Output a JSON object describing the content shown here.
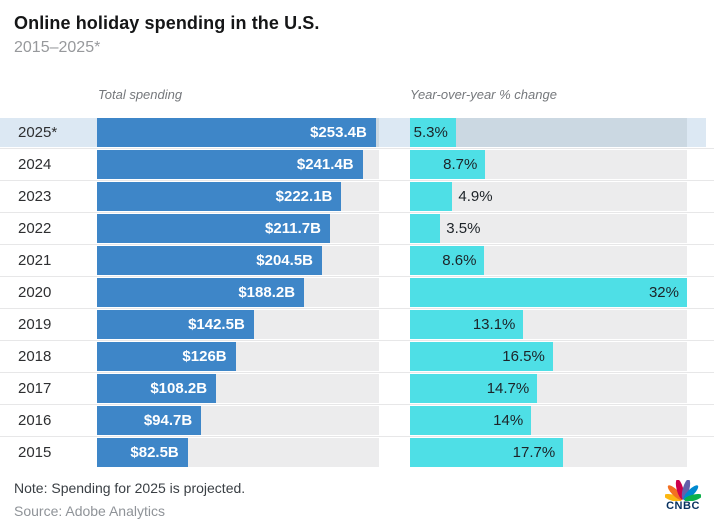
{
  "header": {
    "title": "Online holiday spending in the U.S.",
    "subtitle": "2015–2025*"
  },
  "columns": {
    "left": "Total spending",
    "right": "Year-over-year % change"
  },
  "chart_data": {
    "type": "bar",
    "orientation": "horizontal",
    "title": "Online holiday spending in the U.S.",
    "subtitle": "2015–2025*",
    "categories": [
      "2025*",
      "2024",
      "2023",
      "2022",
      "2021",
      "2020",
      "2019",
      "2018",
      "2017",
      "2016",
      "2015"
    ],
    "highlighted_category": "2025*",
    "series": [
      {
        "name": "Total spending",
        "unit": "$B",
        "values": [
          253.4,
          241.4,
          222.1,
          211.7,
          204.5,
          188.2,
          142.5,
          126,
          108.2,
          94.7,
          82.5
        ],
        "labels": [
          "$253.4B",
          "$241.4B",
          "$222.1B",
          "$211.7B",
          "$204.5B",
          "$188.2B",
          "$142.5B",
          "$126B",
          "$108.2B",
          "$94.7B",
          "$82.5B"
        ]
      },
      {
        "name": "Year-over-year % change",
        "unit": "%",
        "values": [
          5.3,
          8.7,
          4.9,
          3.5,
          8.6,
          32,
          13.1,
          16.5,
          14.7,
          14,
          17.7
        ],
        "labels": [
          "5.3%",
          "8.7%",
          "4.9%",
          "3.5%",
          "8.6%",
          "32%",
          "13.1%",
          "16.5%",
          "14.7%",
          "14%",
          "17.7%"
        ]
      }
    ],
    "axes": {
      "spending_scale_max": 256.3,
      "yoy_scale_max": 32,
      "grid": false,
      "legend": "column headers above each bar group"
    }
  },
  "footer": {
    "note": "Note: Spending for 2025 is projected.",
    "source": "Source: Adobe Analytics",
    "logo": "CNBC"
  },
  "colors": {
    "spending_bar": "#3e86c8",
    "yoy_bar": "#4edfe6",
    "track": "#ececed",
    "highlight_row": "#dce8f3",
    "highlight_track": "#cbd8e2",
    "logo_text": "#07315f",
    "peacock": [
      "#FCB711",
      "#F37021",
      "#CC004C",
      "#6460AA",
      "#0089D0",
      "#0DB14B"
    ]
  }
}
